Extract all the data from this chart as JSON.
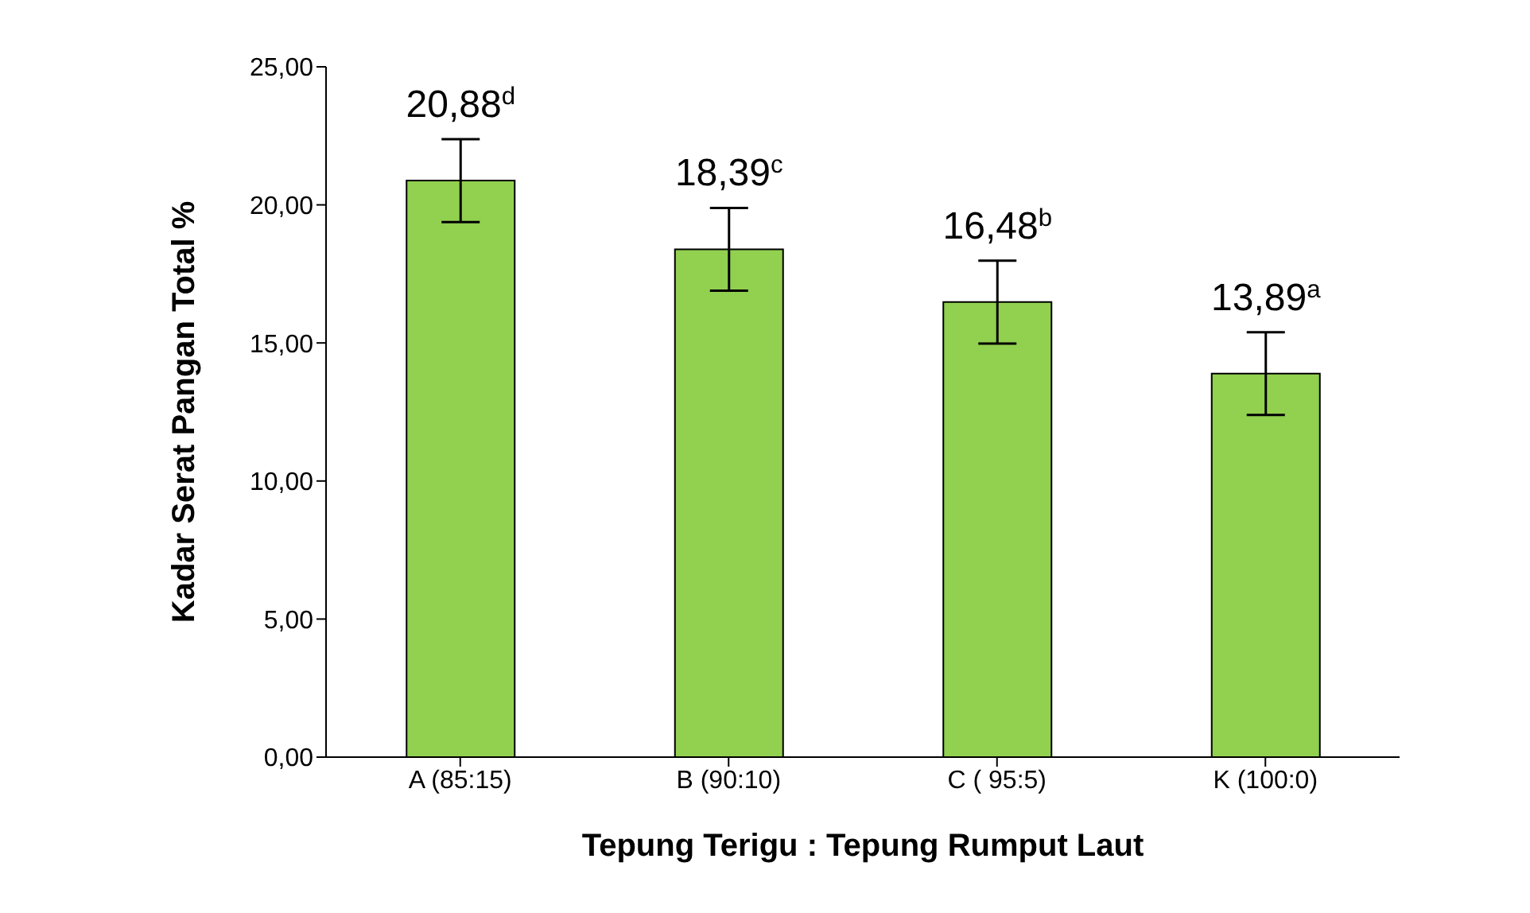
{
  "chart_data": {
    "type": "bar",
    "xlabel": "Tepung Terigu : Tepung Rumput Laut",
    "ylabel": "Kadar  Serat Pangan Total %",
    "categories": [
      "A (85:15)",
      "B (90:10)",
      "C ( 95:5)",
      "K (100:0)"
    ],
    "series": [
      {
        "color": "#92d050",
        "values": [
          20.88,
          18.39,
          16.48,
          13.89
        ],
        "errors": [
          1.5,
          1.5,
          1.5,
          1.5
        ],
        "value_labels": [
          "20,88$^{d}$",
          "18,39$^{c}$",
          "16,48$^{b}$",
          "13,89$^{a}$"
        ]
      }
    ],
    "ylim": [
      0,
      25
    ],
    "yticks": [
      {
        "value": 0,
        "label": "0,00"
      },
      {
        "value": 5,
        "label": "5,00"
      },
      {
        "value": 10,
        "label": "10,00"
      },
      {
        "value": 15,
        "label": "15,00"
      },
      {
        "value": 20,
        "label": "20,00"
      },
      {
        "value": 25,
        "label": "25,00"
      }
    ]
  }
}
